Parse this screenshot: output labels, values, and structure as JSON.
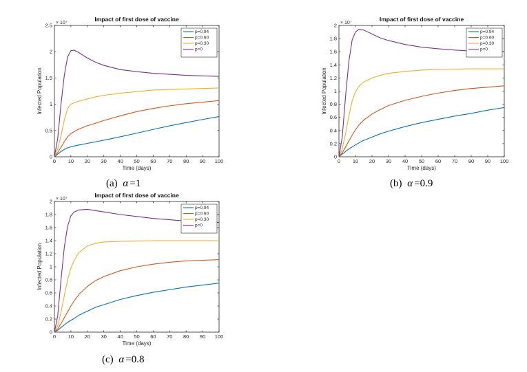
{
  "chart_data": [
    {
      "type": "line",
      "title": "Impact of first dose of vaccine",
      "xlabel": "Time (days)",
      "ylabel": "Infected Population",
      "y_exponent": "× 10⁷",
      "caption_label": "(a)",
      "caption_symbol": "α",
      "caption_value": "=1",
      "xlim": [
        0,
        100
      ],
      "ylim": [
        0,
        2.5
      ],
      "xticks": [
        "0",
        "10",
        "20",
        "30",
        "40",
        "50",
        "60",
        "70",
        "80",
        "90",
        "100"
      ],
      "yticks": [
        "0",
        "0.5",
        "1",
        "1.5",
        "2",
        "2.5"
      ],
      "legend_position": "top-right",
      "grid": false,
      "x": [
        0,
        2,
        4,
        6,
        8,
        10,
        12,
        15,
        20,
        25,
        30,
        40,
        50,
        60,
        70,
        80,
        90,
        100
      ],
      "series": [
        {
          "name": "p=0.94",
          "color": "#0072BD",
          "values": [
            0,
            0.05,
            0.1,
            0.14,
            0.17,
            0.19,
            0.205,
            0.225,
            0.255,
            0.285,
            0.315,
            0.38,
            0.45,
            0.52,
            0.59,
            0.65,
            0.71,
            0.765
          ]
        },
        {
          "name": "p=0.60",
          "color": "#D95319",
          "values": [
            0,
            0.08,
            0.18,
            0.29,
            0.38,
            0.44,
            0.48,
            0.53,
            0.59,
            0.64,
            0.69,
            0.78,
            0.86,
            0.92,
            0.97,
            1.01,
            1.04,
            1.07
          ]
        },
        {
          "name": "p=0.30",
          "color": "#EDB120",
          "values": [
            0,
            0.15,
            0.4,
            0.7,
            0.92,
            1.0,
            1.03,
            1.06,
            1.1,
            1.14,
            1.17,
            1.21,
            1.24,
            1.27,
            1.28,
            1.29,
            1.3,
            1.31
          ]
        },
        {
          "name": "p=0",
          "color": "#7E2F8E",
          "values": [
            0,
            0.35,
            1.0,
            1.55,
            1.9,
            2.02,
            2.03,
            1.98,
            1.88,
            1.8,
            1.74,
            1.66,
            1.62,
            1.59,
            1.57,
            1.55,
            1.54,
            1.53
          ]
        }
      ]
    },
    {
      "type": "line",
      "title": "Impact of first dose of vaccine",
      "xlabel": "Time (days)",
      "ylabel": "Infected Population",
      "y_exponent": "× 10⁷",
      "caption_label": "(b)",
      "caption_symbol": "α",
      "caption_value": "=0.9",
      "xlim": [
        0,
        100
      ],
      "ylim": [
        0,
        2
      ],
      "xticks": [
        "0",
        "10",
        "20",
        "30",
        "40",
        "50",
        "60",
        "70",
        "80",
        "90",
        "100"
      ],
      "yticks": [
        "0",
        "0.2",
        "0.4",
        "0.6",
        "0.8",
        "1",
        "1.2",
        "1.4",
        "1.6",
        "1.8",
        "2"
      ],
      "legend_position": "top-right",
      "grid": false,
      "x": [
        0,
        2,
        4,
        6,
        8,
        10,
        12,
        15,
        20,
        25,
        30,
        40,
        50,
        60,
        70,
        80,
        90,
        100
      ],
      "series": [
        {
          "name": "p=0.94",
          "color": "#0072BD",
          "values": [
            0,
            0.04,
            0.08,
            0.12,
            0.15,
            0.18,
            0.21,
            0.25,
            0.3,
            0.35,
            0.39,
            0.46,
            0.52,
            0.57,
            0.62,
            0.66,
            0.71,
            0.75
          ]
        },
        {
          "name": "p=0.60",
          "color": "#D95319",
          "values": [
            0,
            0.06,
            0.15,
            0.24,
            0.33,
            0.41,
            0.48,
            0.56,
            0.65,
            0.72,
            0.78,
            0.86,
            0.92,
            0.97,
            1.01,
            1.04,
            1.06,
            1.08
          ]
        },
        {
          "name": "p=0.30",
          "color": "#EDB120",
          "values": [
            0,
            0.12,
            0.35,
            0.62,
            0.85,
            0.99,
            1.07,
            1.14,
            1.2,
            1.24,
            1.27,
            1.3,
            1.32,
            1.33,
            1.335,
            1.34,
            1.34,
            1.34
          ]
        },
        {
          "name": "p=0",
          "color": "#7E2F8E",
          "values": [
            0,
            0.3,
            0.92,
            1.45,
            1.78,
            1.9,
            1.94,
            1.93,
            1.87,
            1.81,
            1.77,
            1.71,
            1.67,
            1.645,
            1.625,
            1.61,
            1.6,
            1.6
          ]
        }
      ]
    },
    {
      "type": "line",
      "title": "Impact of first dose of vaccine",
      "xlabel": "Time (days)",
      "ylabel": "Infected Population",
      "y_exponent": "× 10⁷",
      "caption_label": "(c)",
      "caption_symbol": "α",
      "caption_value": "=0.8",
      "xlim": [
        0,
        100
      ],
      "ylim": [
        0,
        2
      ],
      "xticks": [
        "0",
        "10",
        "20",
        "30",
        "40",
        "50",
        "60",
        "70",
        "80",
        "90",
        "100"
      ],
      "yticks": [
        "0",
        "0.2",
        "0.4",
        "0.6",
        "0.8",
        "1",
        "1.2",
        "1.4",
        "1.6",
        "1.8",
        "2"
      ],
      "legend_position": "top-right",
      "grid": false,
      "x": [
        0,
        2,
        4,
        6,
        8,
        10,
        12,
        15,
        20,
        25,
        30,
        40,
        50,
        60,
        70,
        80,
        90,
        100
      ],
      "series": [
        {
          "name": "p=0.94",
          "color": "#0072BD",
          "values": [
            0,
            0.03,
            0.07,
            0.11,
            0.15,
            0.18,
            0.21,
            0.26,
            0.32,
            0.38,
            0.42,
            0.5,
            0.56,
            0.61,
            0.65,
            0.69,
            0.72,
            0.75
          ]
        },
        {
          "name": "p=0.60",
          "color": "#D95319",
          "values": [
            0,
            0.05,
            0.13,
            0.22,
            0.31,
            0.4,
            0.48,
            0.58,
            0.7,
            0.79,
            0.85,
            0.94,
            1.0,
            1.04,
            1.07,
            1.09,
            1.1,
            1.11
          ]
        },
        {
          "name": "p=0.30",
          "color": "#EDB120",
          "values": [
            0,
            0.1,
            0.3,
            0.56,
            0.8,
            0.98,
            1.1,
            1.22,
            1.32,
            1.36,
            1.38,
            1.39,
            1.395,
            1.4,
            1.4,
            1.4,
            1.4,
            1.4
          ]
        },
        {
          "name": "p=0",
          "color": "#7E2F8E",
          "values": [
            0,
            0.25,
            0.8,
            1.3,
            1.62,
            1.78,
            1.84,
            1.87,
            1.88,
            1.86,
            1.84,
            1.8,
            1.77,
            1.74,
            1.72,
            1.7,
            1.69,
            1.68
          ]
        }
      ]
    }
  ]
}
